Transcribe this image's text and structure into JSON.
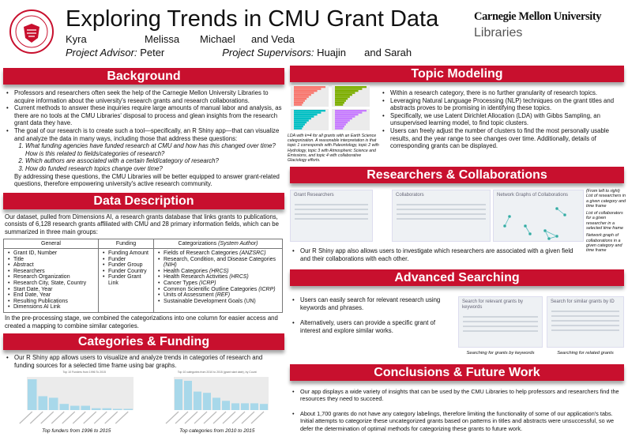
{
  "header": {
    "title": "Exploring Trends in CMU Grant Data",
    "authors": [
      "Kyra",
      "Melissa",
      "Michael",
      "and Veda"
    ],
    "advisor_label": "Project Advisor:",
    "advisor": "Peter",
    "supervisors_label": "Project Supervisors:",
    "supervisors": [
      "Huajin",
      "and Sarah"
    ],
    "logo_line1": "Carnegie Mellon University",
    "logo_line2": "Libraries",
    "seal_icon": "cmu-seal-icon"
  },
  "colors": {
    "accent": "#c8102e",
    "chart_bar": "#a8d8ea"
  },
  "background": {
    "title": "Background",
    "bullets": [
      "Professors and researchers often seek the help of the Carnegie Mellon University Libraries to acquire information about the university's research grants and research collaborations.",
      "Current methods to answer these inquiries require large amounts of manual labor and analysis, as there are no tools at the CMU Libraries' disposal to process and glean insights from the research grant data they have.",
      "The goal of our research is to create such a tool—specifically, an R Shiny app—that can visualize and analyze the data in many ways, including those that address these questions:"
    ],
    "questions": [
      "What funding agencies have funded research at CMU and how has this changed over time? How is this related to fields/categories of research?",
      "Which authors are associated with a certain field/category of research?",
      "How do funded research topics change over time?"
    ],
    "closing": "By addressing these questions, the CMU Libraries will be better equipped to answer grant-related questions, therefore empowering university's active research community."
  },
  "data_description": {
    "title": "Data Description",
    "intro": "Our dataset, pulled from Dimensions AI, a research grants database that links grants to publications, consists of 6,128 research grants affiliated with CMU and 28 primary information fields, which can be summarized in three main groups:",
    "headers": [
      "General",
      "Funding",
      "Categorizations",
      "(System Author)"
    ],
    "general": [
      "Grant ID, Number",
      "Title",
      "Abstract",
      "Researchers",
      "Research Organization",
      "Research City, State, Country",
      "Start Date, Year",
      "End Date, Year",
      "Resulting Publications",
      "Dimensions AI Link"
    ],
    "funding": [
      "Funding Amount",
      "Funder",
      "Funder Group",
      "Funder Country",
      "Funder Grant Link"
    ],
    "categorizations": [
      [
        "Fields of Research Categories ",
        "(ANZSRC)"
      ],
      [
        "Research, Condition, and Disease Categories ",
        "(NIH)"
      ],
      [
        "Health Categories ",
        "(HRCS)"
      ],
      [
        "Health Research Activities ",
        "(HRCS)"
      ],
      [
        "Cancer Types ",
        "(ICRP)"
      ],
      [
        "Common Scientific Outline Categories ",
        "(ICRP)"
      ],
      [
        "Units of Assessment ",
        "(REF)"
      ],
      [
        "Sustainable Development Goals (UN)",
        ""
      ]
    ],
    "outro": "In the pre-processing stage, we combined the categorizations into one column for easier access and created a mapping to combine similar categories."
  },
  "categories_funding": {
    "title": "Categories & Funding",
    "bullets": [
      "Our R Shiny app allows users to visualize and analyze trends in categories of research and funding sources for a selected time frame using bar graphs."
    ],
    "figures": [
      {
        "title": "Top 10 Funders from 1996 To 2015",
        "caption": "Top funders from 1996 to 2015",
        "relative_values": [
          100,
          45,
          40,
          20,
          14,
          14,
          6,
          6,
          4,
          4
        ]
      },
      {
        "title": "Top 10 categories from 2010 to 2015 (grant start date), by Count",
        "caption": "Top categories from 2010 to 2015",
        "relative_values": [
          100,
          95,
          60,
          56,
          40,
          30,
          22,
          22,
          22,
          20
        ]
      }
    ]
  },
  "topic_modeling": {
    "title": "Topic Modeling",
    "caption": "LDA with k=4 for all grants with an Earth Science categorization. A reasonable interpretation is that topic 1 corresponds with Paleontology, topic 2 with Hydrology, topic 3 with Atmospheric Science and Emissions, and topic 4 with collaborative Glaciology efforts.",
    "topic_colors": [
      "#f8766d",
      "#7cae00",
      "#00bfc4",
      "#c77cff"
    ],
    "bullets": [
      "Within a research category, there is no further granularity of research topics.",
      "Leveraging Natural Language Processing (NLP) techniques on the grant titles and abstracts proves to be promising in identifying these topics.",
      "Specifically, we use Latent Dirichlet Allocation (LDA) with Gibbs Sampling, an unsupervised learning model, to find topic clusters.",
      "Users can freely adjust the number of clusters to find the most personally usable results, and the year range to see changes over time. Additionally, details of corresponding grants can be displayed."
    ]
  },
  "researchers": {
    "title": "Researchers & Collaborations",
    "panels": [
      "Grant Researchers",
      "Collaborators",
      "Network Graphs of Collaborations"
    ],
    "captions": [
      "(From left to right) List of researchers in a given category and time frame",
      "List of collaborators for a given researcher in a selected time frame",
      "Network graph of collaborations in a given category and time frame"
    ],
    "bullets": [
      "Our R Shiny app also allows users to investigate which researchers are associated with a given field and their collaborations with each other."
    ]
  },
  "advanced": {
    "title": "Advanced Searching",
    "bullets": [
      "Users can easily search for relevant research using keywords and phrases.",
      "Alternatively, users can provide a specific grant of interest and explore similar works."
    ],
    "panels": [
      "Search for relevant grants by keywords",
      "Search for similar grants by ID"
    ],
    "captions": [
      "Searching for grants by keywords",
      "Searching for related grants"
    ]
  },
  "conclusions": {
    "title": "Conclusions & Future Work",
    "bullets": [
      "Our app displays a wide variety of insights that can be used by the CMU Libraries to help professors and researchers find the resources they need to succeed.",
      "About 1,700 grants do not have any category labelings, therefore limiting the functionality of some of our application's tabs. Initial attempts to categorize these uncategorized grants based on patterns in titles and abstracts were unsuccessful, so we defer the determination of optimal methods for categorizing these grants to future work."
    ]
  }
}
